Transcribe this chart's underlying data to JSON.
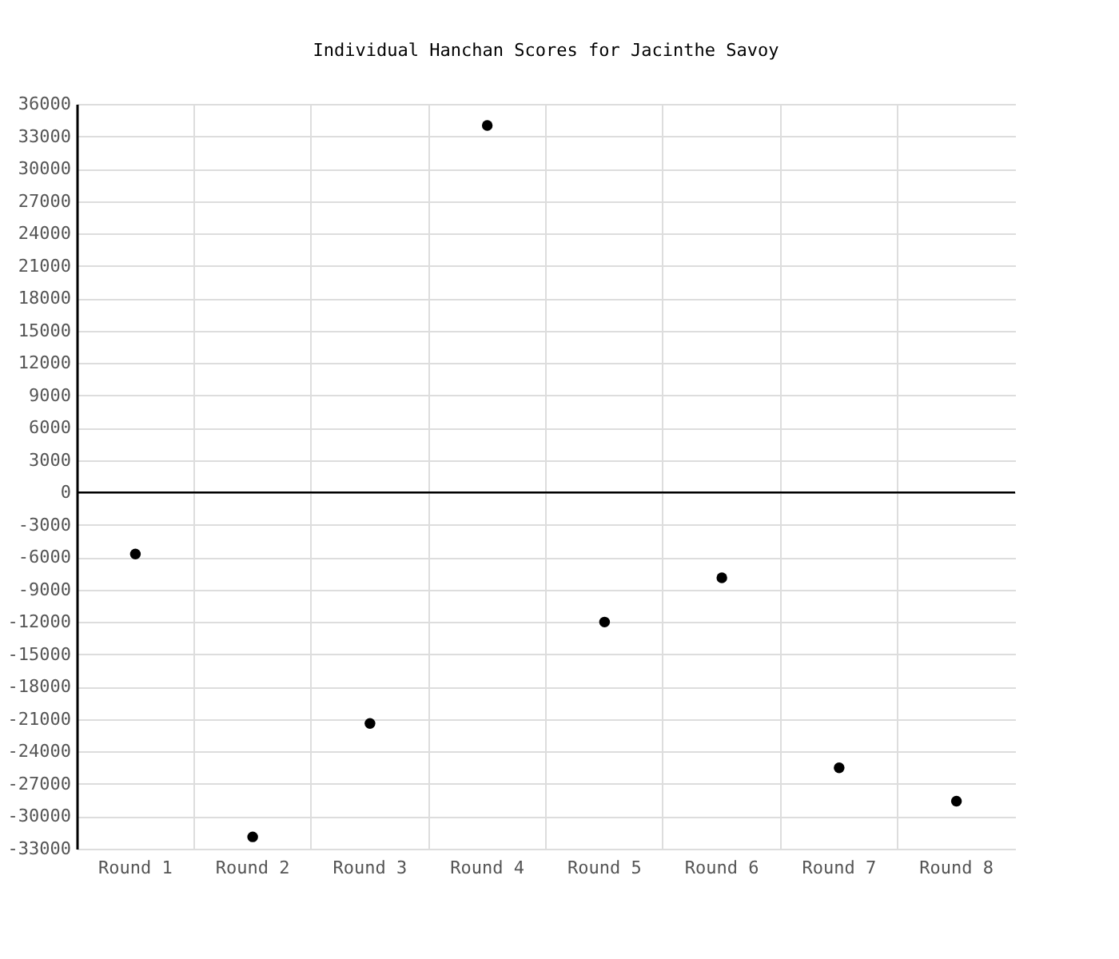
{
  "chart_data": {
    "type": "scatter",
    "title": "Individual Hanchan Scores for Jacinthe Savoy",
    "categories": [
      "Round 1",
      "Round 2",
      "Round 3",
      "Round 4",
      "Round 5",
      "Round 6",
      "Round 7",
      "Round 8"
    ],
    "series": [
      {
        "color": "#000000",
        "values": [
          -5700,
          -31900,
          -21400,
          34000,
          -12000,
          -7900,
          -25500,
          -28600
        ]
      }
    ],
    "ylim": [
      -33000,
      36000
    ],
    "yticks": [
      -33000,
      -30000,
      -27000,
      -24000,
      -21000,
      -18000,
      -15000,
      -12000,
      -9000,
      -6000,
      -3000,
      0,
      3000,
      6000,
      9000,
      12000,
      15000,
      18000,
      21000,
      24000,
      27000,
      30000,
      33000,
      36000
    ],
    "ref_lines": [
      {
        "axis": "y",
        "value": 0,
        "color": "#000000"
      }
    ],
    "grid": true,
    "marker": "circle"
  }
}
